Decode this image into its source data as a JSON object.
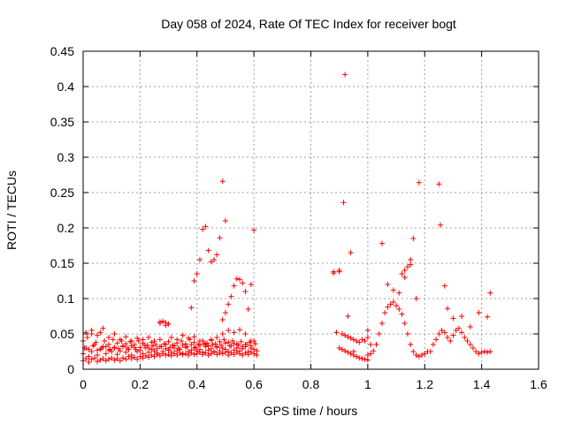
{
  "colors": {
    "series": "#ff0000",
    "grid": "#a0a0a0",
    "axis": "#000000",
    "background": "#ffffff"
  },
  "chart_data": {
    "type": "scatter",
    "title": "Day 058 of 2024, Rate Of TEC Index for receiver bogt",
    "xlabel": "GPS time / hours",
    "ylabel": "ROTI / TECUs",
    "xlim": [
      0,
      1.6
    ],
    "ylim": [
      0,
      0.45
    ],
    "xticks": [
      0,
      0.2,
      0.4,
      0.6,
      0.8,
      1,
      1.2,
      1.4,
      1.6
    ],
    "xtick_labels": [
      "0",
      "0.2",
      "0.4",
      "0.6",
      "0.8",
      "1",
      "1.2",
      "1.4",
      "1.6"
    ],
    "yticks": [
      0,
      0.05,
      0.1,
      0.15,
      0.2,
      0.25,
      0.3,
      0.35,
      0.4,
      0.45
    ],
    "ytick_labels": [
      "0",
      "0.05",
      "0.1",
      "0.15",
      "0.2",
      "0.25",
      "0.3",
      "0.35",
      "0.4",
      "0.45"
    ],
    "grid": true,
    "marker": "plus",
    "series": [
      {
        "name": "ROTI",
        "x": [
          0.0,
          0.01,
          0.02,
          0.03,
          0.04,
          0.05,
          0.06,
          0.07,
          0.08,
          0.09,
          0.1,
          0.11,
          0.12,
          0.13,
          0.14,
          0.15,
          0.16,
          0.17,
          0.18,
          0.19,
          0.2,
          0.21,
          0.22,
          0.23,
          0.24,
          0.25,
          0.26,
          0.27,
          0.28,
          0.29,
          0.3,
          0.31,
          0.32,
          0.33,
          0.34,
          0.35,
          0.36,
          0.37,
          0.38,
          0.39,
          0.4,
          0.41,
          0.42,
          0.43,
          0.44,
          0.45,
          0.46,
          0.47,
          0.48,
          0.49,
          0.5,
          0.51,
          0.52,
          0.53,
          0.54,
          0.55,
          0.56,
          0.57,
          0.58,
          0.59,
          0.6,
          0.61,
          0.0,
          0.01,
          0.02,
          0.03,
          0.04,
          0.05,
          0.06,
          0.07,
          0.08,
          0.09,
          0.1,
          0.11,
          0.12,
          0.13,
          0.14,
          0.15,
          0.16,
          0.17,
          0.18,
          0.19,
          0.2,
          0.21,
          0.22,
          0.23,
          0.24,
          0.25,
          0.26,
          0.27,
          0.28,
          0.29,
          0.3,
          0.31,
          0.32,
          0.33,
          0.34,
          0.35,
          0.36,
          0.37,
          0.38,
          0.39,
          0.4,
          0.41,
          0.42,
          0.43,
          0.44,
          0.45,
          0.46,
          0.47,
          0.48,
          0.49,
          0.5,
          0.51,
          0.52,
          0.53,
          0.54,
          0.55,
          0.56,
          0.57,
          0.58,
          0.59,
          0.6,
          0.61,
          0.0,
          0.015,
          0.03,
          0.045,
          0.06,
          0.075,
          0.09,
          0.105,
          0.12,
          0.135,
          0.15,
          0.165,
          0.18,
          0.195,
          0.21,
          0.225,
          0.24,
          0.255,
          0.27,
          0.285,
          0.3,
          0.315,
          0.33,
          0.345,
          0.36,
          0.375,
          0.39,
          0.405,
          0.42,
          0.435,
          0.45,
          0.465,
          0.48,
          0.495,
          0.51,
          0.525,
          0.54,
          0.555,
          0.57,
          0.585,
          0.6,
          0.005,
          0.02,
          0.035,
          0.05,
          0.065,
          0.08,
          0.095,
          0.11,
          0.125,
          0.14,
          0.155,
          0.17,
          0.185,
          0.2,
          0.215,
          0.23,
          0.245,
          0.26,
          0.275,
          0.29,
          0.305,
          0.32,
          0.335,
          0.35,
          0.365,
          0.38,
          0.395,
          0.41,
          0.425,
          0.44,
          0.455,
          0.47,
          0.485,
          0.5,
          0.515,
          0.53,
          0.545,
          0.56,
          0.575,
          0.59,
          0.605,
          0.01,
          0.03,
          0.05,
          0.07,
          0.09,
          0.11,
          0.13,
          0.15,
          0.17,
          0.19,
          0.21,
          0.23,
          0.25,
          0.27,
          0.29,
          0.31,
          0.33,
          0.35,
          0.37,
          0.39,
          0.41,
          0.43,
          0.45,
          0.47,
          0.49,
          0.51,
          0.53,
          0.55,
          0.57,
          0.59,
          0.38,
          0.39,
          0.4,
          0.41,
          0.42,
          0.43,
          0.44,
          0.45,
          0.46,
          0.47,
          0.48,
          0.49,
          0.5,
          0.49,
          0.5,
          0.51,
          0.52,
          0.53,
          0.54,
          0.55,
          0.56,
          0.57,
          0.58,
          0.59,
          0.6,
          0.27,
          0.28,
          0.29,
          0.3,
          0.88,
          0.89,
          0.9,
          0.91,
          0.92,
          0.93,
          0.94,
          0.95,
          0.96,
          0.97,
          0.98,
          0.99,
          1.0,
          0.9,
          0.91,
          0.92,
          0.93,
          0.94,
          0.95,
          0.96,
          0.97,
          0.98,
          0.99,
          1.0,
          0.88,
          0.9,
          0.915,
          0.92,
          0.93,
          0.94,
          0.95,
          1.0,
          1.01,
          1.0,
          1.01,
          1.02,
          1.03,
          1.04,
          1.05,
          1.06,
          1.07,
          1.08,
          1.09,
          1.1,
          1.11,
          1.12,
          1.13,
          1.14,
          1.15,
          1.16,
          1.17,
          1.18,
          1.19,
          1.2,
          1.21,
          1.05,
          1.07,
          1.09,
          1.11,
          1.13,
          1.15,
          1.17,
          1.12,
          1.13,
          1.14,
          1.15,
          1.16,
          1.18,
          1.22,
          1.23,
          1.24,
          1.25,
          1.26,
          1.27,
          1.28,
          1.29,
          1.3,
          1.31,
          1.32,
          1.33,
          1.34,
          1.35,
          1.36,
          1.37,
          1.38,
          1.39,
          1.4,
          1.41,
          1.42,
          1.43,
          1.25,
          1.255,
          1.27,
          1.28,
          1.3,
          1.33,
          1.36,
          1.39,
          1.42,
          1.43
        ],
        "y": [
          0.022,
          0.03,
          0.018,
          0.025,
          0.035,
          0.02,
          0.028,
          0.032,
          0.022,
          0.027,
          0.025,
          0.03,
          0.021,
          0.026,
          0.033,
          0.024,
          0.028,
          0.02,
          0.031,
          0.025,
          0.027,
          0.022,
          0.03,
          0.024,
          0.028,
          0.026,
          0.023,
          0.032,
          0.025,
          0.029,
          0.027,
          0.024,
          0.03,
          0.026,
          0.028,
          0.022,
          0.031,
          0.025,
          0.027,
          0.03,
          0.026,
          0.028,
          0.024,
          0.032,
          0.027,
          0.029,
          0.025,
          0.031,
          0.026,
          0.03,
          0.028,
          0.025,
          0.033,
          0.027,
          0.03,
          0.026,
          0.029,
          0.032,
          0.025,
          0.03,
          0.028,
          0.026,
          0.012,
          0.015,
          0.01,
          0.014,
          0.016,
          0.011,
          0.013,
          0.015,
          0.012,
          0.014,
          0.016,
          0.013,
          0.015,
          0.012,
          0.016,
          0.014,
          0.018,
          0.015,
          0.017,
          0.014,
          0.018,
          0.016,
          0.019,
          0.017,
          0.02,
          0.018,
          0.021,
          0.019,
          0.022,
          0.02,
          0.021,
          0.019,
          0.022,
          0.02,
          0.023,
          0.021,
          0.022,
          0.02,
          0.023,
          0.021,
          0.022,
          0.024,
          0.021,
          0.023,
          0.02,
          0.022,
          0.024,
          0.021,
          0.023,
          0.022,
          0.024,
          0.02,
          0.023,
          0.021,
          0.024,
          0.022,
          0.02,
          0.023,
          0.021,
          0.024,
          0.022,
          0.02,
          0.04,
          0.045,
          0.05,
          0.038,
          0.052,
          0.04,
          0.035,
          0.042,
          0.037,
          0.04,
          0.036,
          0.039,
          0.035,
          0.04,
          0.037,
          0.034,
          0.038,
          0.035,
          0.042,
          0.036,
          0.039,
          0.034,
          0.037,
          0.04,
          0.036,
          0.042,
          0.038,
          0.035,
          0.04,
          0.037,
          0.041,
          0.036,
          0.039,
          0.042,
          0.038,
          0.04,
          0.036,
          0.039,
          0.035,
          0.038,
          0.04,
          0.03,
          0.028,
          0.033,
          0.027,
          0.03,
          0.032,
          0.028,
          0.031,
          0.029,
          0.032,
          0.03,
          0.033,
          0.028,
          0.031,
          0.034,
          0.03,
          0.033,
          0.029,
          0.032,
          0.035,
          0.031,
          0.033,
          0.03,
          0.034,
          0.032,
          0.035,
          0.031,
          0.034,
          0.036,
          0.033,
          0.035,
          0.032,
          0.034,
          0.037,
          0.033,
          0.036,
          0.034,
          0.032,
          0.035,
          0.033,
          0.036,
          0.052,
          0.055,
          0.048,
          0.058,
          0.045,
          0.05,
          0.042,
          0.046,
          0.04,
          0.044,
          0.042,
          0.045,
          0.04,
          0.065,
          0.062,
          0.045,
          0.042,
          0.048,
          0.044,
          0.046,
          0.04,
          0.035,
          0.042,
          0.045,
          0.05,
          0.055,
          0.052,
          0.056,
          0.05,
          0.04,
          0.087,
          0.125,
          0.135,
          0.155,
          0.198,
          0.202,
          0.168,
          0.152,
          0.155,
          0.162,
          0.186,
          0.266,
          0.21,
          0.07,
          0.08,
          0.092,
          0.103,
          0.118,
          0.128,
          0.127,
          0.122,
          0.11,
          0.085,
          0.12,
          0.197,
          0.067,
          0.068,
          0.066,
          0.064,
          0.136,
          0.052,
          0.138,
          0.05,
          0.048,
          0.046,
          0.044,
          0.042,
          0.04,
          0.038,
          0.042,
          0.04,
          0.045,
          0.03,
          0.028,
          0.026,
          0.024,
          0.022,
          0.02,
          0.018,
          0.016,
          0.015,
          0.014,
          0.013,
          0.138,
          0.14,
          0.236,
          0.417,
          0.075,
          0.165,
          0.025,
          0.055,
          0.035,
          0.02,
          0.022,
          0.026,
          0.035,
          0.05,
          0.065,
          0.08,
          0.088,
          0.092,
          0.095,
          0.09,
          0.085,
          0.078,
          0.065,
          0.05,
          0.035,
          0.025,
          0.02,
          0.018,
          0.02,
          0.022,
          0.025,
          0.178,
          0.12,
          0.112,
          0.108,
          0.13,
          0.148,
          0.1,
          0.135,
          0.14,
          0.145,
          0.155,
          0.185,
          0.264,
          0.025,
          0.035,
          0.042,
          0.05,
          0.055,
          0.052,
          0.045,
          0.04,
          0.048,
          0.055,
          0.058,
          0.052,
          0.045,
          0.04,
          0.035,
          0.03,
          0.025,
          0.022,
          0.024,
          0.025,
          0.024,
          0.025,
          0.262,
          0.204,
          0.118,
          0.086,
          0.072,
          0.075,
          0.06,
          0.08,
          0.074,
          0.108
        ]
      }
    ]
  }
}
